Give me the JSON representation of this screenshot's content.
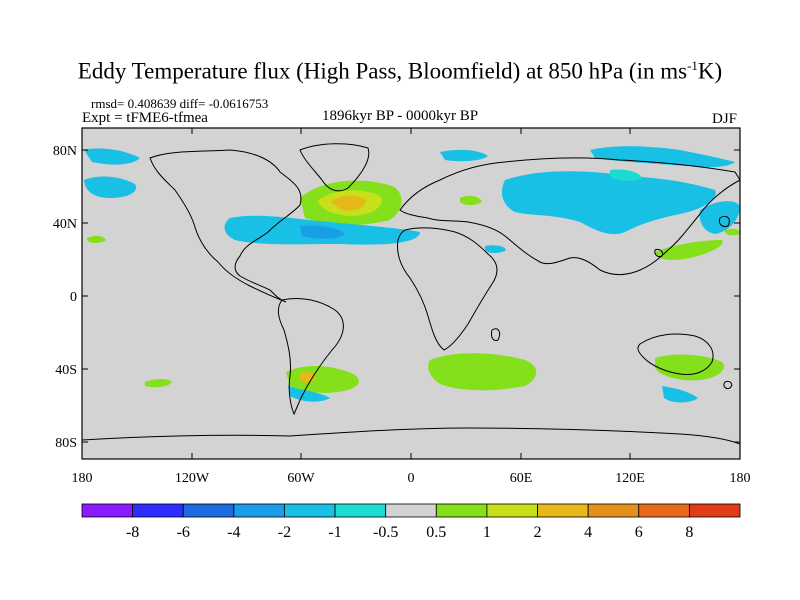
{
  "title_main": "Eddy Temperature flux (High Pass, Bloomfield) at 850 hPa (in ms",
  "title_exp": "-1",
  "title_end": "K)",
  "stats": "rmsd= 0.408639 diff= -0.0616753",
  "expt": "Expt = tFME6-tfmea",
  "period": "1896kyr BP - 0000kyr BP",
  "season": "DJF",
  "lat_labels": [
    "80N",
    "40N",
    "0",
    "40S",
    "80S"
  ],
  "lon_labels": [
    "180",
    "120W",
    "60W",
    "0",
    "60E",
    "120E",
    "180"
  ],
  "colorbar": {
    "labels": [
      "-8",
      "-6",
      "-4",
      "-2",
      "-1",
      "-0.5",
      "0.5",
      "1",
      "2",
      "4",
      "6",
      "8"
    ],
    "colors": [
      "#8c1aff",
      "#2d2dff",
      "#1c6be0",
      "#1a9ee8",
      "#19c0e6",
      "#1cdcd2",
      "#d3d3d3",
      "#84e01a",
      "#c8e01a",
      "#e6b81a",
      "#e6901a",
      "#e66a1a",
      "#e03c1a"
    ]
  },
  "map_data": {
    "background_color": "#d3d3d3",
    "land_outline_color": "#000000"
  }
}
